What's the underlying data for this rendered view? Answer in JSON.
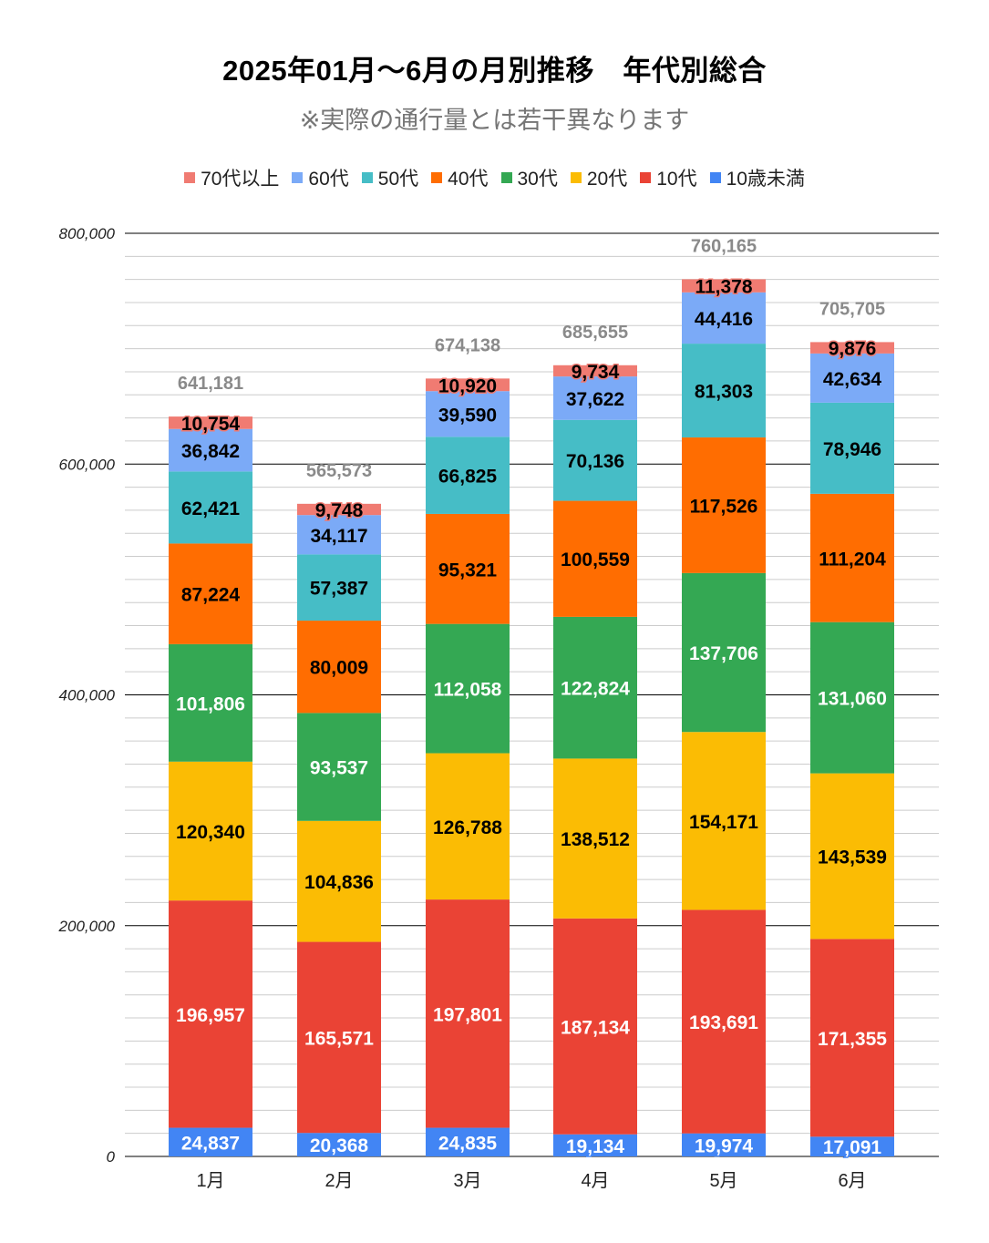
{
  "chart_data": {
    "type": "bar",
    "stacked": true,
    "title": "2025年01月～6月の月別推移　年代別総合",
    "subtitle": "※実際の通行量とは若干異なります",
    "xlabel": "",
    "ylabel": "",
    "categories": [
      "1月",
      "2月",
      "3月",
      "4月",
      "5月",
      "6月"
    ],
    "ylim": [
      0,
      800000
    ],
    "yticks": [
      0,
      200000,
      400000,
      600000,
      800000
    ],
    "ytick_labels": [
      "0",
      "200,000",
      "400,000",
      "600,000",
      "800,000"
    ],
    "minor_grid_step": 20000,
    "grid": true,
    "legend_position": "top",
    "legend_order": [
      "70代以上",
      "60代",
      "50代",
      "40代",
      "30代",
      "20代",
      "10代",
      "10歳未満"
    ],
    "series": [
      {
        "name": "10歳未満",
        "color": "#4285f4",
        "label_color": "#ffffff",
        "values": [
          24837,
          20368,
          24835,
          19134,
          19974,
          17091
        ]
      },
      {
        "name": "10代",
        "color": "#ea4335",
        "label_color": "#ffffff",
        "values": [
          196957,
          165571,
          197801,
          187134,
          193691,
          171355
        ]
      },
      {
        "name": "20代",
        "color": "#fbbc04",
        "label_color": "#000000",
        "values": [
          120340,
          104836,
          126788,
          138512,
          154171,
          143539
        ]
      },
      {
        "name": "30代",
        "color": "#34a853",
        "label_color": "#ffffff",
        "values": [
          101806,
          93537,
          112058,
          122824,
          137706,
          131060
        ]
      },
      {
        "name": "40代",
        "color": "#ff6d01",
        "label_color": "#000000",
        "values": [
          87224,
          80009,
          95321,
          100559,
          117526,
          111204
        ]
      },
      {
        "name": "50代",
        "color": "#46bdc6",
        "label_color": "#000000",
        "values": [
          62421,
          57387,
          66825,
          70136,
          81303,
          78946
        ]
      },
      {
        "name": "60代",
        "color": "#7baaf7",
        "label_color": "#000000",
        "values": [
          36842,
          34117,
          39590,
          37622,
          44416,
          42634
        ]
      },
      {
        "name": "70代以上",
        "color": "#f07b72",
        "label_color": "#000000",
        "values": [
          10754,
          9748,
          10920,
          9734,
          11378,
          9876
        ]
      }
    ],
    "totals": [
      641181,
      565573,
      674138,
      685655,
      760165,
      705705
    ],
    "total_labels": [
      "641,181",
      "565,573",
      "674,138",
      "685,655",
      "760,165",
      "705,705"
    ]
  }
}
